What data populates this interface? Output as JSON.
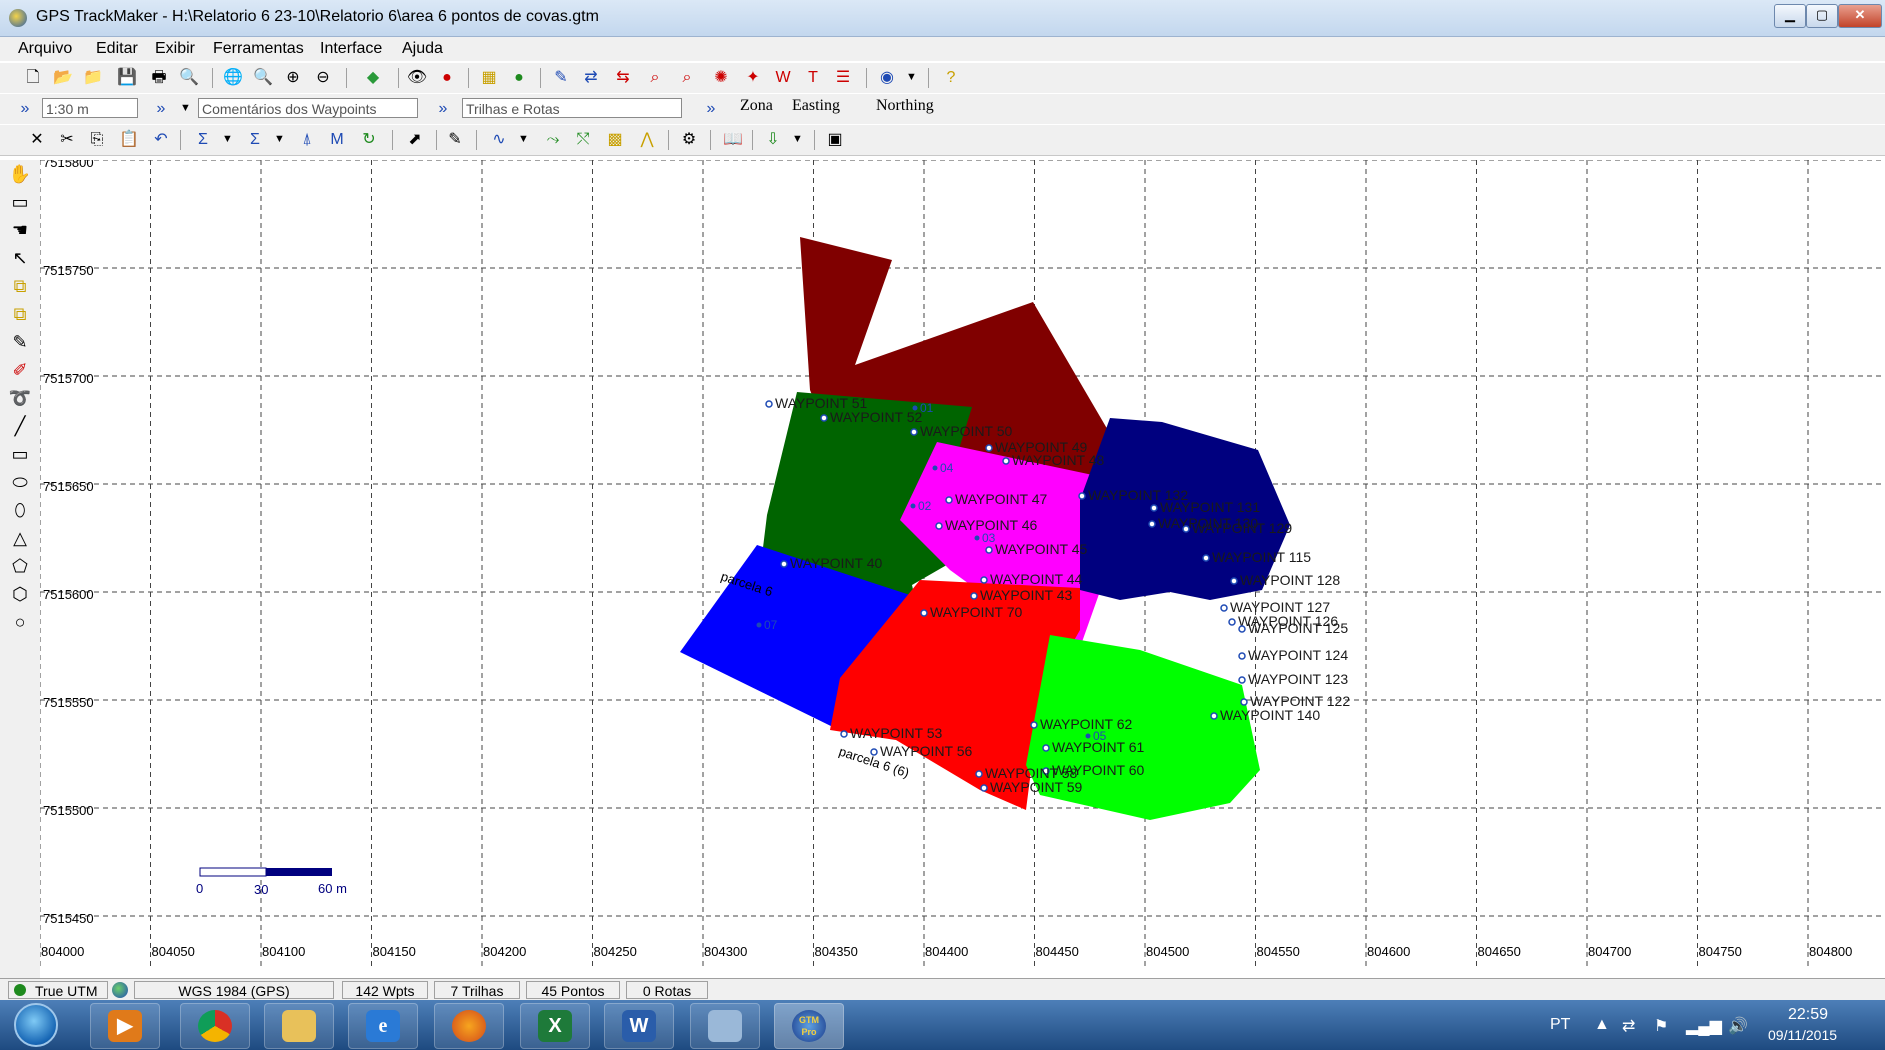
{
  "window": {
    "title": "GPS TrackMaker - H:\\Relatorio 6 23-10\\Relatorio 6\\area 6 pontos de covas.gtm",
    "min": "▁",
    "max": "▢",
    "close": "✕"
  },
  "menu": [
    "Arquivo",
    "Editar",
    "Exibir",
    "Ferramentas",
    "Interface",
    "Ajuda"
  ],
  "toolbar2": {
    "scale": "1:30 m",
    "waypoint_comments": "Comentários dos Waypoints",
    "tracks": "Trilhas e Rotas",
    "tabs": [
      "Zona",
      "Easting",
      "Northing"
    ]
  },
  "map": {
    "y_labels": [
      "7515800",
      "7515750",
      "7515700",
      "7515650",
      "7515600",
      "7515550",
      "7515500",
      "7515450"
    ],
    "x_labels": [
      "804000",
      "804050",
      "804100",
      "804150",
      "804200",
      "804250",
      "804300",
      "804350",
      "804400",
      "804450",
      "804500",
      "804550",
      "804600",
      "804650",
      "804700",
      "804750",
      "804800"
    ],
    "scale_bar": {
      "labels": [
        "0",
        "30",
        "60 m"
      ]
    },
    "parcel_labels": [
      "parcela 6 (6)",
      "parcela 6"
    ],
    "polygon_colors": {
      "maroon": "#800000",
      "green": "#006400",
      "magenta": "#ff00ff",
      "navy": "#00007f",
      "blue": "#0000ff",
      "red": "#ff0000",
      "lime": "#00ff00"
    },
    "waypoints": [
      {
        "label": "WAYPOINT 51"
      },
      {
        "label": "WAYPOINT 52"
      },
      {
        "label": "WAYPOINT 50"
      },
      {
        "label": "WAYPOINT 49"
      },
      {
        "label": "WAYPOINT 48"
      },
      {
        "label": "WAYPOINT 47"
      },
      {
        "label": "WAYPOINT 46"
      },
      {
        "label": "WAYPOINT 45"
      },
      {
        "label": "WAYPOINT 44"
      },
      {
        "label": "WAYPOINT 43"
      },
      {
        "label": "WAYPOINT 40"
      },
      {
        "label": "WAYPOINT 70"
      },
      {
        "label": "WAYPOINT 132"
      },
      {
        "label": "WAYPOINT 131"
      },
      {
        "label": "WAYPOINT 130"
      },
      {
        "label": "WAYPOINT 129"
      },
      {
        "label": "WAYPOINT 115"
      },
      {
        "label": "WAYPOINT 128"
      },
      {
        "label": "WAYPOINT 127"
      },
      {
        "label": "WAYPOINT 126"
      },
      {
        "label": "WAYPOINT 125"
      },
      {
        "label": "WAYPOINT 124"
      },
      {
        "label": "WAYPOINT 123"
      },
      {
        "label": "WAYPOINT 122"
      },
      {
        "label": "WAYPOINT 140"
      },
      {
        "label": "WAYPOINT 62"
      },
      {
        "label": "WAYPOINT 61"
      },
      {
        "label": "WAYPOINT 60"
      },
      {
        "label": "WAYPOINT 59"
      },
      {
        "label": "WAYPOINT 58"
      },
      {
        "label": "WAYPOINT 56"
      },
      {
        "label": "WAYPOINT 53"
      }
    ],
    "point_labels": [
      "01",
      "02",
      "03",
      "04",
      "05",
      "07"
    ]
  },
  "status": {
    "projection": "True UTM",
    "datum": "WGS 1984 (GPS)",
    "waypoints": "142 Wpts",
    "tracks": "7 Trilhas",
    "points": "45 Pontos",
    "routes": "0 Rotas"
  },
  "taskbar": {
    "apps": [
      "media-player",
      "chrome",
      "file-explorer",
      "internet-explorer",
      "firefox",
      "excel",
      "word",
      "window-app",
      "gtm-pro"
    ],
    "gtm_label": "GTM Pro",
    "lang": "PT",
    "time": "22:59",
    "date": "09/11/2015"
  }
}
